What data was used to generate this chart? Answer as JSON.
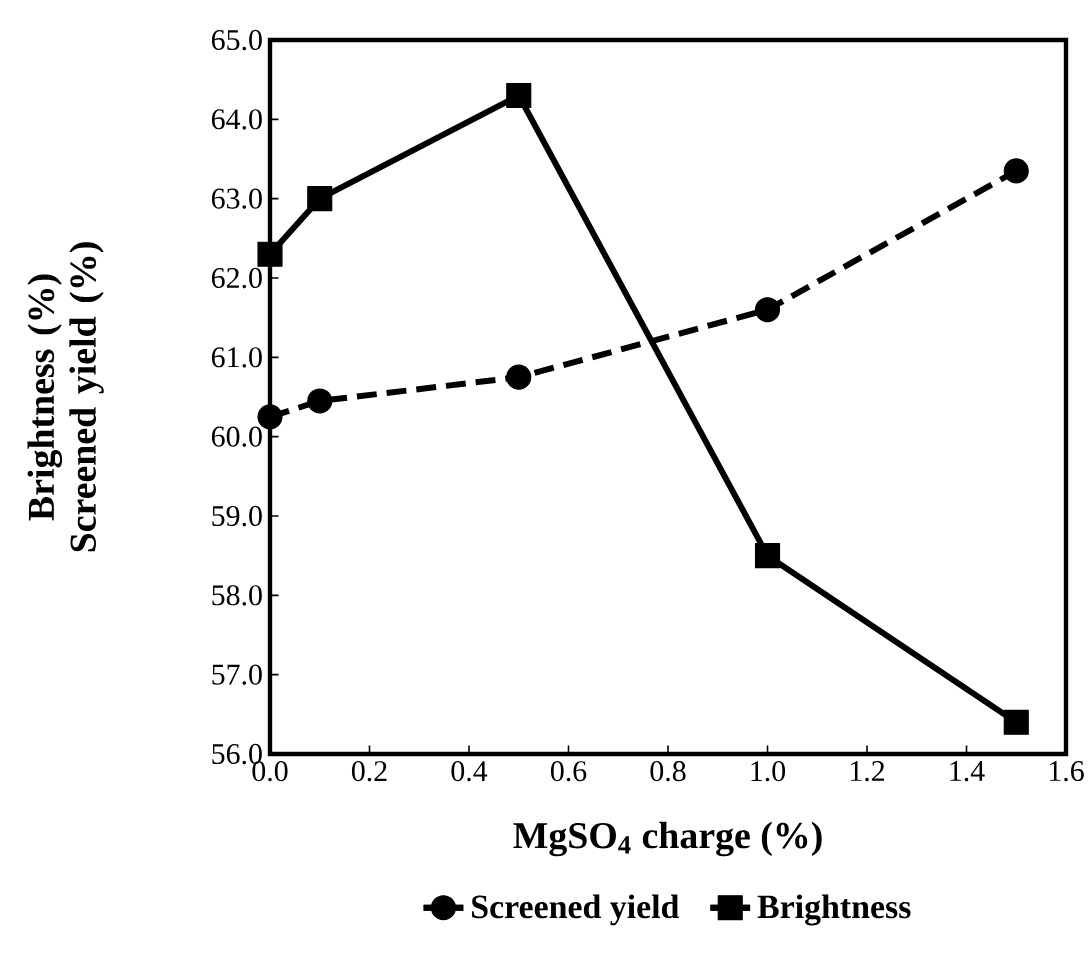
{
  "chart_data": {
    "type": "line",
    "xlabel": "MgSO$_{4}$ charge (%)",
    "ylabel": "Brightness (%) Screened yield (%)",
    "xlim": [
      0,
      1.6
    ],
    "xticks": [
      {
        "value": 0,
        "label": "0.0"
      },
      {
        "value": 0.2,
        "label": "0.2"
      },
      {
        "value": 0.4,
        "label": "0.4"
      },
      {
        "value": 0.6,
        "label": "0.6"
      },
      {
        "value": 0.8,
        "label": "0.8"
      },
      {
        "value": 1.0,
        "label": "1.0"
      },
      {
        "value": 1.2,
        "label": "1.2"
      },
      {
        "value": 1.4,
        "label": "1.4"
      },
      {
        "value": 1.6,
        "label": "1.6"
      }
    ],
    "ylim": [
      56,
      65
    ],
    "yticks": [
      {
        "value": 56,
        "label": "56.0"
      },
      {
        "value": 57,
        "label": "57.0"
      },
      {
        "value": 58,
        "label": "58.0"
      },
      {
        "value": 59,
        "label": "59.0"
      },
      {
        "value": 60,
        "label": "60.0"
      },
      {
        "value": 61,
        "label": "61.0"
      },
      {
        "value": 62,
        "label": "62.0"
      },
      {
        "value": 63,
        "label": "63.0"
      },
      {
        "value": 64,
        "label": "64.0"
      },
      {
        "value": 65,
        "label": "65.0"
      }
    ],
    "x": [
      0,
      0.1,
      0.5,
      1.0,
      1.5
    ],
    "series": [
      {
        "name": "Screened yield",
        "color": "#000000",
        "values": [
          60.25,
          60.45,
          60.75,
          61.6,
          63.35
        ],
        "marker": "circle",
        "line_style": "dashed"
      },
      {
        "name": "Brightness",
        "color": "#000000",
        "values": [
          62.3,
          63.0,
          64.3,
          58.5,
          56.4
        ],
        "marker": "square",
        "line_style": "solid"
      }
    ],
    "legend": "bottom",
    "grid": false
  }
}
